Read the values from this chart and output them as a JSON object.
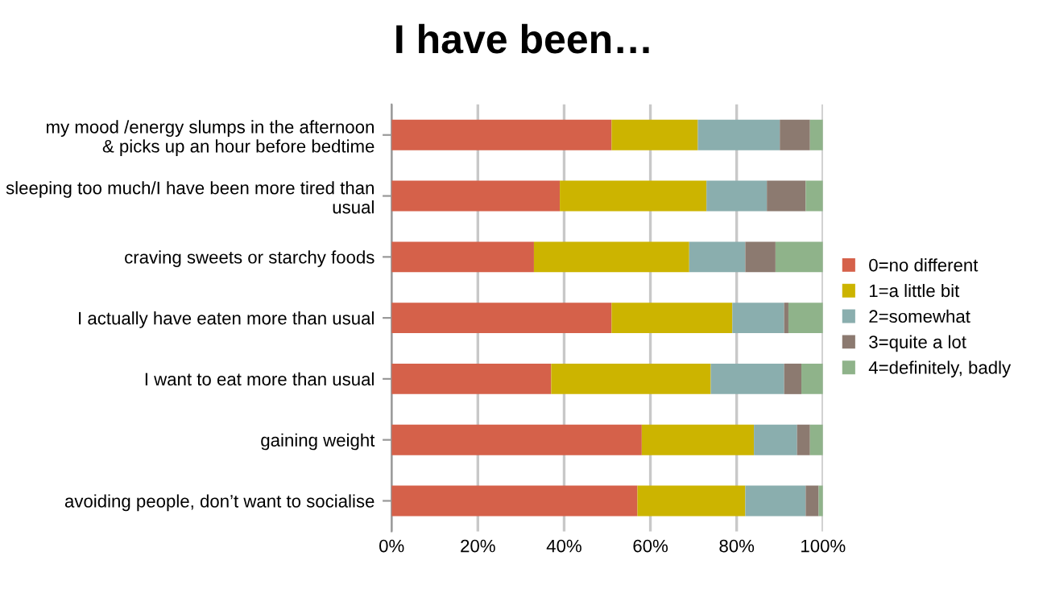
{
  "chart_data": {
    "type": "bar",
    "orientation": "horizontal",
    "stacked": true,
    "title": "I have been…",
    "categories": [
      "my mood /energy slumps in the afternoon\n& picks up an hour before bedtime",
      "sleeping too much/I have been more tired than\nusual",
      "craving sweets or starchy foods",
      "I actually have eaten more than usual",
      "I want to eat more than usual",
      "gaining weight",
      "avoiding people, don’t want to socialise"
    ],
    "series": [
      {
        "name": "0=no different",
        "color": "#d5614a",
        "values": [
          51,
          39,
          33,
          51,
          37,
          58,
          57
        ]
      },
      {
        "name": "1=a little bit",
        "color": "#ccb400",
        "values": [
          20,
          34,
          36,
          28,
          37,
          26,
          25
        ]
      },
      {
        "name": "2=somewhat",
        "color": "#8aaeae",
        "values": [
          19,
          14,
          13,
          12,
          17,
          10,
          14
        ]
      },
      {
        "name": "3=quite a lot",
        "color": "#8c7a70",
        "values": [
          7,
          9,
          7,
          1,
          4,
          3,
          3
        ]
      },
      {
        "name": "4=definitely, badly",
        "color": "#8fb38a",
        "values": [
          3,
          4,
          11,
          8,
          5,
          3,
          1
        ]
      }
    ],
    "xlim": [
      0,
      100
    ],
    "xticks": [
      {
        "value": 0,
        "label": "0%"
      },
      {
        "value": 20,
        "label": "20%"
      },
      {
        "value": 40,
        "label": "40%"
      },
      {
        "value": 60,
        "label": "60%"
      },
      {
        "value": 80,
        "label": "80%"
      },
      {
        "value": 100,
        "label": "100%"
      }
    ],
    "grid": "x",
    "legend": "right"
  }
}
